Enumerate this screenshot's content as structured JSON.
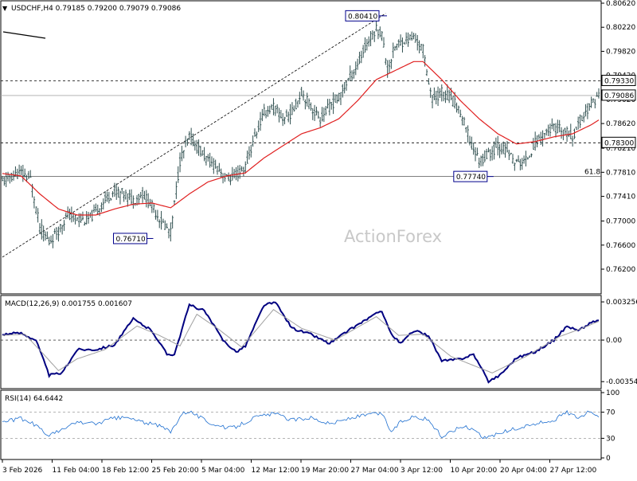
{
  "header": {
    "symbol_line": "USDCHF,H4  0.79185 0.79200 0.79079 0.79086"
  },
  "colors": {
    "price_bar": "#2f4f4f",
    "moving_average": "#e02020",
    "macd_line": "#000080",
    "macd_signal": "#a0a0a0",
    "rsi_line": "#1e6fd0",
    "label_border": "#00008b",
    "grid_dashed": "#808080",
    "watermark": "#c8c8c8"
  },
  "watermark": "ActionForex",
  "chart_data": [
    {
      "type": "candlestick",
      "panel": "price",
      "title": "USDCHF,H4",
      "ohlc_readout": {
        "open": 0.79185,
        "high": 0.792,
        "low": 0.79079,
        "close": 0.79086
      },
      "x_tick_labels": [
        "3 Feb 2026",
        "11 Feb 04:00",
        "18 Feb 12:00",
        "25 Feb 20:00",
        "5 Mar 04:00",
        "12 Mar 12:00",
        "19 Mar 20:00",
        "27 Mar 04:00",
        "3 Apr 12:00",
        "10 Apr 20:00",
        "20 Apr 04:00",
        "27 Apr 12:00"
      ],
      "y_tick_labels": [
        "0.80620",
        "0.80220",
        "0.79820",
        "0.79420",
        "0.79020",
        "0.78620",
        "0.78210",
        "0.77810",
        "0.77410",
        "0.77000",
        "0.76600",
        "0.76200"
      ],
      "ylim": [
        0.762,
        0.8062
      ],
      "key_levels": [
        {
          "label": "0.80410",
          "value": 0.8041,
          "kind": "swing-high"
        },
        {
          "label": "0.79330",
          "value": 0.7933,
          "kind": "horizontal"
        },
        {
          "label": "0.78300",
          "value": 0.783,
          "kind": "horizontal"
        },
        {
          "label": "0.77740",
          "value": 0.7774,
          "kind": "swing-low"
        },
        {
          "label": "0.76710",
          "value": 0.7671,
          "kind": "swing-low"
        }
      ],
      "current_price": {
        "label": "0.79086",
        "value": 0.79086
      },
      "fib_label": "61.8",
      "fib_level": 0.7774,
      "close_path": [
        {
          "i": 0,
          "c": 0.7765
        },
        {
          "i": 5,
          "c": 0.7775
        },
        {
          "i": 10,
          "c": 0.778
        },
        {
          "i": 15,
          "c": 0.777
        },
        {
          "i": 20,
          "c": 0.769
        },
        {
          "i": 25,
          "c": 0.7665
        },
        {
          "i": 30,
          "c": 0.7685
        },
        {
          "i": 35,
          "c": 0.771
        },
        {
          "i": 40,
          "c": 0.7705
        },
        {
          "i": 45,
          "c": 0.77
        },
        {
          "i": 50,
          "c": 0.7715
        },
        {
          "i": 55,
          "c": 0.7735
        },
        {
          "i": 60,
          "c": 0.775
        },
        {
          "i": 65,
          "c": 0.7745
        },
        {
          "i": 70,
          "c": 0.7735
        },
        {
          "i": 75,
          "c": 0.7745
        },
        {
          "i": 80,
          "c": 0.7725
        },
        {
          "i": 85,
          "c": 0.77
        },
        {
          "i": 90,
          "c": 0.768
        },
        {
          "i": 95,
          "c": 0.78
        },
        {
          "i": 100,
          "c": 0.784
        },
        {
          "i": 105,
          "c": 0.782
        },
        {
          "i": 110,
          "c": 0.78
        },
        {
          "i": 115,
          "c": 0.779
        },
        {
          "i": 120,
          "c": 0.777
        },
        {
          "i": 125,
          "c": 0.7775
        },
        {
          "i": 130,
          "c": 0.779
        },
        {
          "i": 135,
          "c": 0.784
        },
        {
          "i": 140,
          "c": 0.788
        },
        {
          "i": 145,
          "c": 0.789
        },
        {
          "i": 150,
          "c": 0.787
        },
        {
          "i": 155,
          "c": 0.788
        },
        {
          "i": 160,
          "c": 0.7915
        },
        {
          "i": 165,
          "c": 0.789
        },
        {
          "i": 170,
          "c": 0.787
        },
        {
          "i": 175,
          "c": 0.789
        },
        {
          "i": 180,
          "c": 0.7905
        },
        {
          "i": 185,
          "c": 0.7935
        },
        {
          "i": 190,
          "c": 0.796
        },
        {
          "i": 195,
          "c": 0.7995
        },
        {
          "i": 200,
          "c": 0.802
        },
        {
          "i": 203,
          "c": 0.801
        },
        {
          "i": 206,
          "c": 0.795
        },
        {
          "i": 210,
          "c": 0.799
        },
        {
          "i": 215,
          "c": 0.8
        },
        {
          "i": 220,
          "c": 0.8005
        },
        {
          "i": 225,
          "c": 0.7985
        },
        {
          "i": 230,
          "c": 0.79
        },
        {
          "i": 235,
          "c": 0.7915
        },
        {
          "i": 240,
          "c": 0.7905
        },
        {
          "i": 245,
          "c": 0.788
        },
        {
          "i": 250,
          "c": 0.7835
        },
        {
          "i": 255,
          "c": 0.78
        },
        {
          "i": 260,
          "c": 0.781
        },
        {
          "i": 265,
          "c": 0.7825
        },
        {
          "i": 270,
          "c": 0.7815
        },
        {
          "i": 275,
          "c": 0.7795
        },
        {
          "i": 280,
          "c": 0.78
        },
        {
          "i": 285,
          "c": 0.783
        },
        {
          "i": 290,
          "c": 0.7845
        },
        {
          "i": 295,
          "c": 0.7855
        },
        {
          "i": 300,
          "c": 0.785
        },
        {
          "i": 305,
          "c": 0.784
        },
        {
          "i": 310,
          "c": 0.787
        },
        {
          "i": 315,
          "c": 0.7895
        },
        {
          "i": 319,
          "c": 0.7909
        }
      ],
      "ma_path": [
        {
          "i": 0,
          "v": 0.7779
        },
        {
          "i": 10,
          "v": 0.7775
        },
        {
          "i": 20,
          "v": 0.7745
        },
        {
          "i": 30,
          "v": 0.772
        },
        {
          "i": 40,
          "v": 0.771
        },
        {
          "i": 50,
          "v": 0.771
        },
        {
          "i": 60,
          "v": 0.772
        },
        {
          "i": 70,
          "v": 0.7728
        },
        {
          "i": 80,
          "v": 0.773
        },
        {
          "i": 90,
          "v": 0.7722
        },
        {
          "i": 100,
          "v": 0.7745
        },
        {
          "i": 110,
          "v": 0.7765
        },
        {
          "i": 120,
          "v": 0.7775
        },
        {
          "i": 130,
          "v": 0.778
        },
        {
          "i": 140,
          "v": 0.7805
        },
        {
          "i": 150,
          "v": 0.7825
        },
        {
          "i": 160,
          "v": 0.7845
        },
        {
          "i": 170,
          "v": 0.7855
        },
        {
          "i": 180,
          "v": 0.787
        },
        {
          "i": 190,
          "v": 0.79
        },
        {
          "i": 200,
          "v": 0.7935
        },
        {
          "i": 210,
          "v": 0.795
        },
        {
          "i": 220,
          "v": 0.7965
        },
        {
          "i": 225,
          "v": 0.7965
        },
        {
          "i": 235,
          "v": 0.7935
        },
        {
          "i": 245,
          "v": 0.79
        },
        {
          "i": 255,
          "v": 0.787
        },
        {
          "i": 265,
          "v": 0.7845
        },
        {
          "i": 275,
          "v": 0.7828
        },
        {
          "i": 285,
          "v": 0.7832
        },
        {
          "i": 295,
          "v": 0.784
        },
        {
          "i": 305,
          "v": 0.7845
        },
        {
          "i": 315,
          "v": 0.786
        },
        {
          "i": 319,
          "v": 0.7868
        }
      ],
      "trendline": {
        "from": {
          "i": 0,
          "v": 0.764
        },
        "to": {
          "i": 205,
          "v": 0.8045
        }
      }
    },
    {
      "type": "line",
      "panel": "macd",
      "title": "MACD(12,26,9) 0.001755 0.001607",
      "y_tick_labels": [
        "0.003256",
        "0.00",
        "-0.00354"
      ],
      "ylim": [
        -0.004,
        0.0036
      ],
      "zero_line": 0,
      "series": [
        {
          "key": "macd",
          "points": [
            {
              "i": 0,
              "v": 0.0005
            },
            {
              "i": 10,
              "v": 0.0006
            },
            {
              "i": 18,
              "v": 0.0
            },
            {
              "i": 25,
              "v": -0.003
            },
            {
              "i": 32,
              "v": -0.0028
            },
            {
              "i": 40,
              "v": -0.0008
            },
            {
              "i": 50,
              "v": -0.0008
            },
            {
              "i": 60,
              "v": -0.0004
            },
            {
              "i": 70,
              "v": 0.0018
            },
            {
              "i": 80,
              "v": 0.0008
            },
            {
              "i": 88,
              "v": -0.0012
            },
            {
              "i": 92,
              "v": -0.0012
            },
            {
              "i": 100,
              "v": 0.003
            },
            {
              "i": 108,
              "v": 0.0025
            },
            {
              "i": 118,
              "v": 0.0
            },
            {
              "i": 125,
              "v": -0.001
            },
            {
              "i": 130,
              "v": -0.0005
            },
            {
              "i": 140,
              "v": 0.003
            },
            {
              "i": 146,
              "v": 0.0032
            },
            {
              "i": 155,
              "v": 0.001
            },
            {
              "i": 165,
              "v": 0.0005
            },
            {
              "i": 175,
              "v": -0.0003
            },
            {
              "i": 185,
              "v": 0.0008
            },
            {
              "i": 195,
              "v": 0.0018
            },
            {
              "i": 203,
              "v": 0.0025
            },
            {
              "i": 208,
              "v": 0.0005
            },
            {
              "i": 213,
              "v": -0.0003
            },
            {
              "i": 220,
              "v": 0.0008
            },
            {
              "i": 228,
              "v": 0.0004
            },
            {
              "i": 235,
              "v": -0.0018
            },
            {
              "i": 245,
              "v": -0.0016
            },
            {
              "i": 252,
              "v": -0.0012
            },
            {
              "i": 260,
              "v": -0.0035
            },
            {
              "i": 266,
              "v": -0.003
            },
            {
              "i": 275,
              "v": -0.0015
            },
            {
              "i": 285,
              "v": -0.001
            },
            {
              "i": 295,
              "v": 0.0
            },
            {
              "i": 302,
              "v": 0.0012
            },
            {
              "i": 308,
              "v": 0.0008
            },
            {
              "i": 315,
              "v": 0.0015
            },
            {
              "i": 319,
              "v": 0.0017
            }
          ]
        },
        {
          "key": "signal",
          "points": [
            {
              "i": 0,
              "v": 0.0004
            },
            {
              "i": 12,
              "v": 0.0005
            },
            {
              "i": 22,
              "v": -0.0012
            },
            {
              "i": 30,
              "v": -0.0026
            },
            {
              "i": 40,
              "v": -0.0016
            },
            {
              "i": 55,
              "v": -0.0008
            },
            {
              "i": 72,
              "v": 0.0012
            },
            {
              "i": 84,
              "v": 0.0004
            },
            {
              "i": 95,
              "v": -0.0005
            },
            {
              "i": 104,
              "v": 0.0022
            },
            {
              "i": 115,
              "v": 0.001
            },
            {
              "i": 128,
              "v": -0.0006
            },
            {
              "i": 145,
              "v": 0.0026
            },
            {
              "i": 160,
              "v": 0.001
            },
            {
              "i": 178,
              "v": 0.0
            },
            {
              "i": 200,
              "v": 0.002
            },
            {
              "i": 212,
              "v": 0.0004
            },
            {
              "i": 225,
              "v": 0.0005
            },
            {
              "i": 240,
              "v": -0.0014
            },
            {
              "i": 262,
              "v": -0.0028
            },
            {
              "i": 280,
              "v": -0.0014
            },
            {
              "i": 298,
              "v": 0.0003
            },
            {
              "i": 310,
              "v": 0.001
            },
            {
              "i": 319,
              "v": 0.0016
            }
          ]
        }
      ]
    },
    {
      "type": "line",
      "panel": "rsi",
      "title": "RSI(14) 64.6442",
      "y_tick_labels": [
        "100",
        "70",
        "30",
        "0"
      ],
      "ylim": [
        0,
        100
      ],
      "reference_levels": [
        70,
        30
      ],
      "series": [
        {
          "key": "rsi",
          "points": [
            {
              "i": 0,
              "v": 55
            },
            {
              "i": 10,
              "v": 60
            },
            {
              "i": 18,
              "v": 50
            },
            {
              "i": 24,
              "v": 35
            },
            {
              "i": 30,
              "v": 40
            },
            {
              "i": 40,
              "v": 55
            },
            {
              "i": 50,
              "v": 52
            },
            {
              "i": 58,
              "v": 60
            },
            {
              "i": 66,
              "v": 62
            },
            {
              "i": 75,
              "v": 55
            },
            {
              "i": 85,
              "v": 48
            },
            {
              "i": 90,
              "v": 40
            },
            {
              "i": 96,
              "v": 68
            },
            {
              "i": 100,
              "v": 72
            },
            {
              "i": 110,
              "v": 55
            },
            {
              "i": 120,
              "v": 45
            },
            {
              "i": 125,
              "v": 48
            },
            {
              "i": 135,
              "v": 62
            },
            {
              "i": 145,
              "v": 68
            },
            {
              "i": 155,
              "v": 58
            },
            {
              "i": 165,
              "v": 62
            },
            {
              "i": 175,
              "v": 52
            },
            {
              "i": 185,
              "v": 60
            },
            {
              "i": 195,
              "v": 66
            },
            {
              "i": 203,
              "v": 68
            },
            {
              "i": 208,
              "v": 40
            },
            {
              "i": 213,
              "v": 55
            },
            {
              "i": 220,
              "v": 64
            },
            {
              "i": 228,
              "v": 58
            },
            {
              "i": 235,
              "v": 32
            },
            {
              "i": 245,
              "v": 48
            },
            {
              "i": 252,
              "v": 45
            },
            {
              "i": 258,
              "v": 30
            },
            {
              "i": 266,
              "v": 38
            },
            {
              "i": 275,
              "v": 45
            },
            {
              "i": 285,
              "v": 52
            },
            {
              "i": 295,
              "v": 58
            },
            {
              "i": 302,
              "v": 70
            },
            {
              "i": 308,
              "v": 62
            },
            {
              "i": 315,
              "v": 72
            },
            {
              "i": 319,
              "v": 65
            }
          ]
        }
      ]
    }
  ]
}
